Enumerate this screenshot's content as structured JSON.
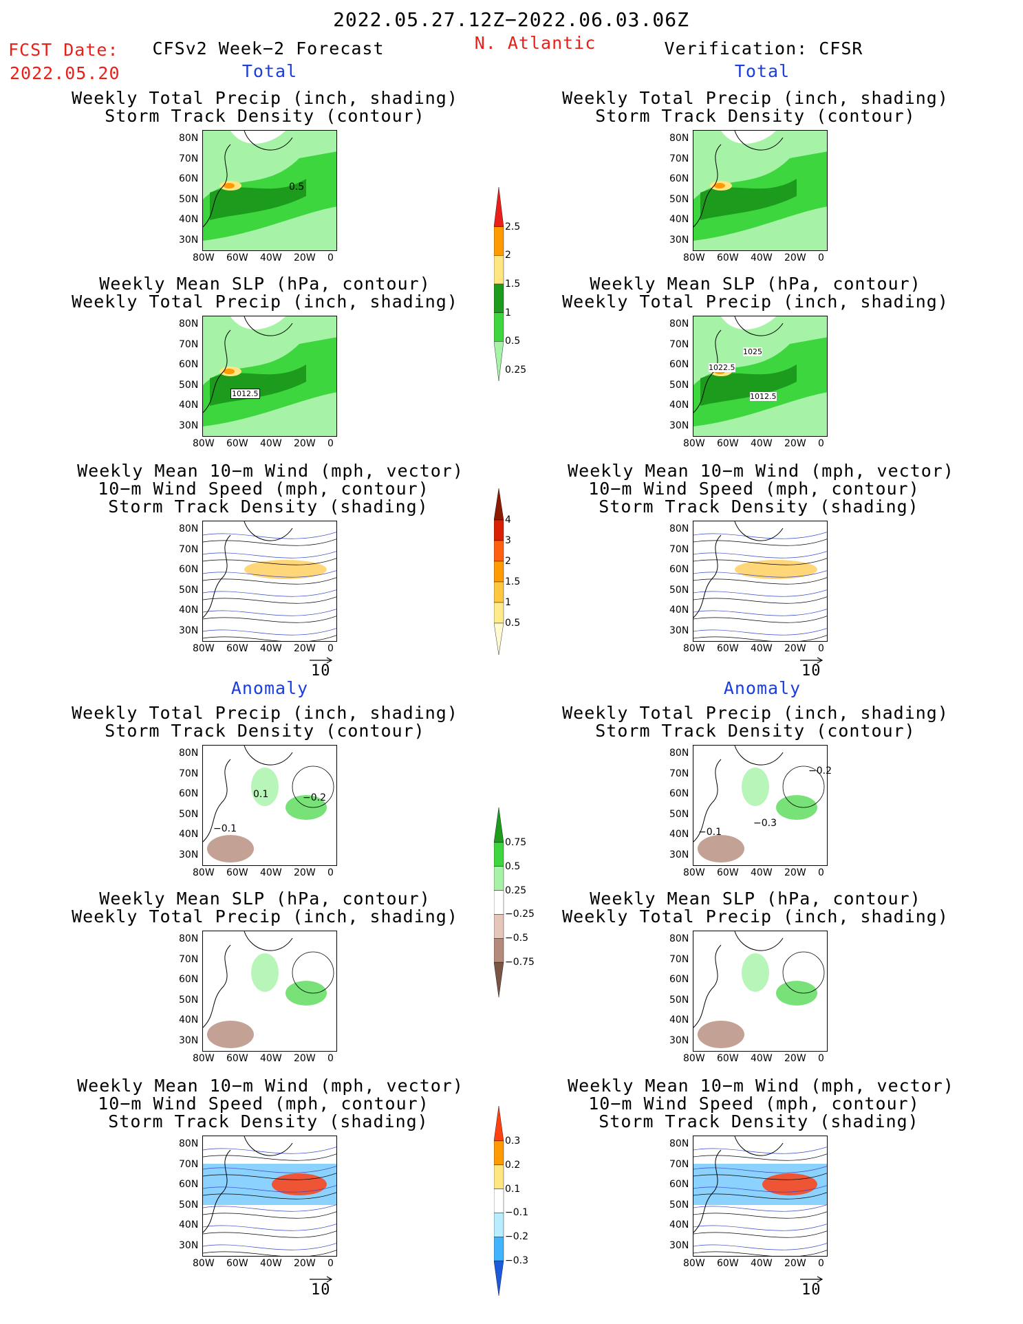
{
  "header": {
    "date_range": "2022.05.27.12Z−2022.06.03.06Z",
    "region": "N. Atlantic",
    "fcst_label": "FCST Date:",
    "fcst_date": "2022.05.20",
    "left_title": "CFSv2 Week−2 Forecast",
    "right_title": "Verification: CFSR",
    "total_label": "Total",
    "anomaly_label": "Anomaly"
  },
  "panel_titles": {
    "precip_storm": [
      "Weekly Total Precip (inch, shading)",
      "Storm Track Density (contour)"
    ],
    "slp_precip": [
      "Weekly Mean SLP (hPa, contour)",
      "Weekly Total Precip (inch, shading)"
    ],
    "wind_storm": [
      "Weekly Mean 10−m Wind (mph, vector)",
      "10−m Wind Speed (mph, contour)",
      "Storm Track Density (shading)"
    ]
  },
  "axes": {
    "lat_labels": [
      "80N",
      "70N",
      "60N",
      "50N",
      "40N",
      "30N"
    ],
    "lon_labels": [
      "80W",
      "60W",
      "40W",
      "20W",
      "0"
    ]
  },
  "vector_ref": "10",
  "contour_labels": {
    "fc_total_precip": "0.5",
    "fc_total_slp": "1012.5",
    "ob_total_slp_a": "1025",
    "ob_total_slp_b": "1022.5",
    "ob_total_slp_c": "1012.5",
    "fc_anom_precip_a": "0.1",
    "fc_anom_precip_b": "−0.2",
    "fc_anom_precip_c": "−0.1",
    "ob_anom_precip_a": "−0.2",
    "ob_anom_precip_b": "−0.1",
    "ob_anom_precip_c": "−0.3"
  },
  "colorbars": {
    "precip_total": {
      "labels": [
        "2.5",
        "2",
        "1.5",
        "1",
        "0.5",
        "0.25"
      ],
      "colors": [
        "#e8201a",
        "#ff9a00",
        "#ffe680",
        "#1c9b1c",
        "#3ed63e",
        "#a6f2a6"
      ]
    },
    "storm_total": {
      "labels": [
        "4",
        "3",
        "2",
        "1.5",
        "1",
        "0.5"
      ],
      "colors": [
        "#8c1a00",
        "#d92000",
        "#ff6010",
        "#ff9a00",
        "#ffc640",
        "#ffeb8c",
        "#fffad0"
      ]
    },
    "precip_anom": {
      "labels": [
        "0.75",
        "0.5",
        "0.25",
        "−0.25",
        "−0.5",
        "−0.75"
      ],
      "colors": [
        "#1c9b1c",
        "#3ed63e",
        "#a6f2a6",
        "#ffffff",
        "#e6c6b8",
        "#b48a7a",
        "#7a5444"
      ]
    },
    "storm_anom": {
      "labels": [
        "0.3",
        "0.2",
        "0.1",
        "−0.1",
        "−0.2",
        "−0.3"
      ],
      "colors": [
        "#ff4010",
        "#ff9a00",
        "#ffe680",
        "#ffffff",
        "#b8ecff",
        "#40b4ff",
        "#1c5ad9"
      ]
    }
  }
}
